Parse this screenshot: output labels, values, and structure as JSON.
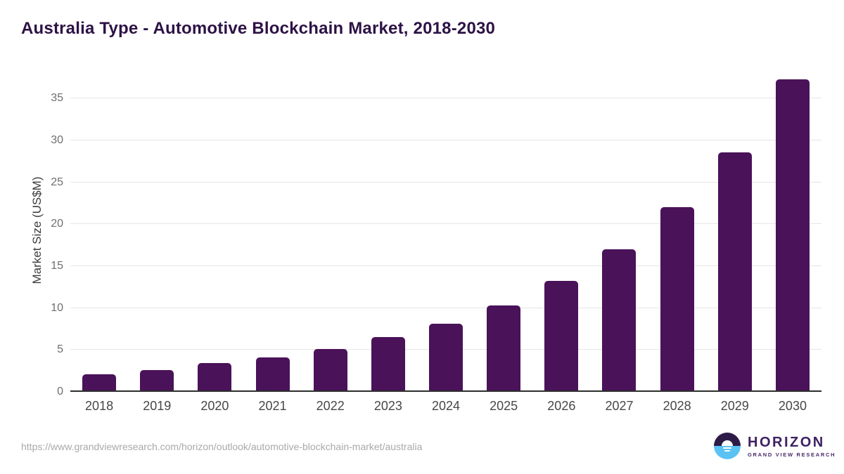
{
  "title": "Australia Type - Automotive Blockchain Market, 2018-2030",
  "footer": {
    "source_url": "https://www.grandviewresearch.com/horizon/outlook/automotive-blockchain-market/australia",
    "logo_name": "HORIZON",
    "logo_subtitle": "GRAND VIEW RESEARCH"
  },
  "colors": {
    "bar": "#4a1259",
    "title_text": "#2d1245",
    "gridline": "#e5e5e5",
    "axis_line": "#2e2e2e",
    "y_tick_label": "#6e6e6e",
    "x_tick_label": "#474747",
    "source_url_text": "#a9a9a9",
    "logo_purple": "#2d1b47",
    "logo_blue": "#5bc2f4",
    "logo_text": "#3d2163"
  },
  "chart_data": {
    "type": "bar",
    "title": "Australia Type - Automotive Blockchain Market, 2018-2030",
    "categories": [
      "2018",
      "2019",
      "2020",
      "2021",
      "2022",
      "2023",
      "2024",
      "2025",
      "2026",
      "2027",
      "2028",
      "2029",
      "2030"
    ],
    "values": [
      2.1,
      2.6,
      3.4,
      4.1,
      5.1,
      6.5,
      8.1,
      10.3,
      13.2,
      17.0,
      22.0,
      28.6,
      37.3
    ],
    "xlabel": "",
    "ylabel": "Market Size (US$M)",
    "ylim": [
      0,
      38.7
    ],
    "yticks": [
      0,
      5,
      10,
      15,
      20,
      25,
      30,
      35
    ],
    "grid": true,
    "legend": false,
    "bar_color": "#4a1259"
  }
}
